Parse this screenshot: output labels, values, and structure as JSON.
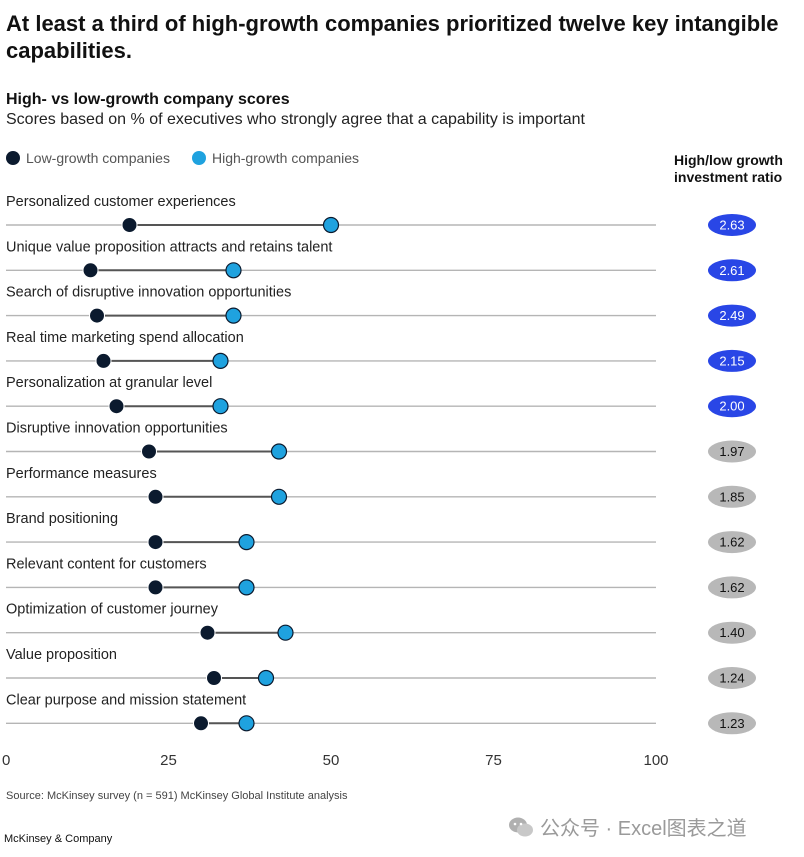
{
  "header": {
    "title": "At least a third of high-growth companies prioritized twelve key intangible capabilities.",
    "subtitle": "High- vs low-growth company scores",
    "subtitle2": "Scores based on % of executives who strongly agree that a capability is important"
  },
  "legend": {
    "low_label": "Low-growth companies",
    "high_label": "High-growth companies"
  },
  "ratio_header": {
    "line1": "High/low growth",
    "line2": "investment ratio"
  },
  "colors": {
    "low": "#0b1a2e",
    "high": "#1fa2df",
    "line": "#555555",
    "axis": "#b5b5b5",
    "ratio_blue": "#2946e6",
    "ratio_gray": "#b8b8b8"
  },
  "chart_data": {
    "type": "dumbbell",
    "xlim": [
      0,
      100
    ],
    "xticks": [
      "0",
      "25",
      "50",
      "75",
      "100"
    ],
    "xtick_values": [
      0,
      25,
      50,
      75,
      100
    ],
    "series": [
      {
        "name": "Low-growth companies",
        "values": [
          19,
          13,
          14,
          15,
          17,
          22,
          23,
          23,
          23,
          31,
          32,
          30
        ]
      },
      {
        "name": "High-growth companies",
        "values": [
          50,
          35,
          35,
          33,
          33,
          42,
          42,
          37,
          37,
          43,
          40,
          37
        ]
      }
    ],
    "categories": [
      "Personalized customer experiences",
      "Unique value proposition attracts and retains talent",
      "Search of disruptive innovation opportunities",
      "Real time marketing spend allocation",
      "Personalization at granular level",
      "Disruptive innovation opportunities",
      "Performance measures",
      "Brand positioning",
      "Relevant content for customers",
      "Optimization of customer journey",
      "Value proposition",
      "Clear purpose and mission statement"
    ],
    "ratios": [
      "2.63",
      "2.61",
      "2.49",
      "2.15",
      "2.00",
      "1.97",
      "1.85",
      "1.62",
      "1.62",
      "1.40",
      "1.24",
      "1.23"
    ],
    "ratio_highlight": [
      true,
      true,
      true,
      true,
      true,
      false,
      false,
      false,
      false,
      false,
      false,
      false
    ]
  },
  "footer": {
    "source": "Source: McKinsey survey (n = 591) McKinsey Global Institute analysis",
    "brand": "McKinsey & Company",
    "watermark": "公众号 · Excel图表之道"
  }
}
